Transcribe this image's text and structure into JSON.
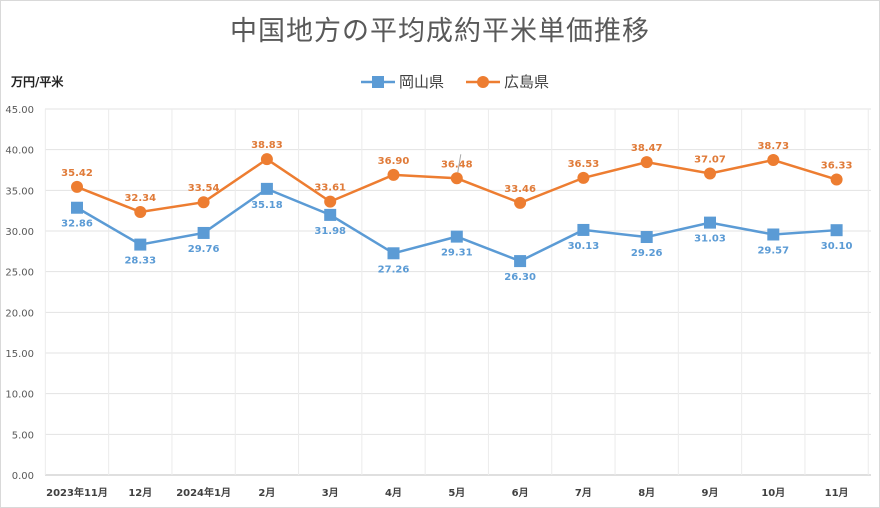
{
  "chart_data": {
    "type": "line",
    "title": "中国地方の平均成約平米単価推移",
    "ylabel": "万円/平米",
    "xlabel": "",
    "ylim": [
      0,
      45
    ],
    "yticks": [
      "0.00",
      "5.00",
      "10.00",
      "15.00",
      "20.00",
      "25.00",
      "30.00",
      "35.00",
      "40.00",
      "45.00"
    ],
    "categories": [
      "2023年11月",
      "12月",
      "2024年1月",
      "2月",
      "3月",
      "4月",
      "5月",
      "6月",
      "7月",
      "8月",
      "9月",
      "10月",
      "11月"
    ],
    "series": [
      {
        "name": "岡山県",
        "color": "#5b9bd5",
        "label_color": "#5b9bd5",
        "marker": "square",
        "values": [
          32.86,
          28.33,
          29.76,
          35.18,
          31.98,
          27.26,
          29.31,
          26.3,
          30.13,
          29.26,
          31.03,
          29.57,
          30.1
        ],
        "labels": [
          "32.86",
          "28.33",
          "29.76",
          "35.18",
          "31.98",
          "27.26",
          "29.31",
          "26.30",
          "30.13",
          "29.26",
          "31.03",
          "29.57",
          "30.10"
        ]
      },
      {
        "name": "広島県",
        "color": "#ed7d31",
        "label_color": "#e07b39",
        "marker": "circle",
        "values": [
          35.42,
          32.34,
          33.54,
          38.83,
          33.61,
          36.9,
          36.48,
          33.46,
          36.53,
          38.47,
          37.07,
          38.73,
          36.33
        ],
        "labels": [
          "35.42",
          "32.34",
          "33.54",
          "38.83",
          "33.61",
          "36.90",
          "36.48",
          "33.46",
          "36.53",
          "38.47",
          "37.07",
          "38.73",
          "36.33"
        ]
      }
    ],
    "grid": true,
    "legend_position": "top-center"
  }
}
